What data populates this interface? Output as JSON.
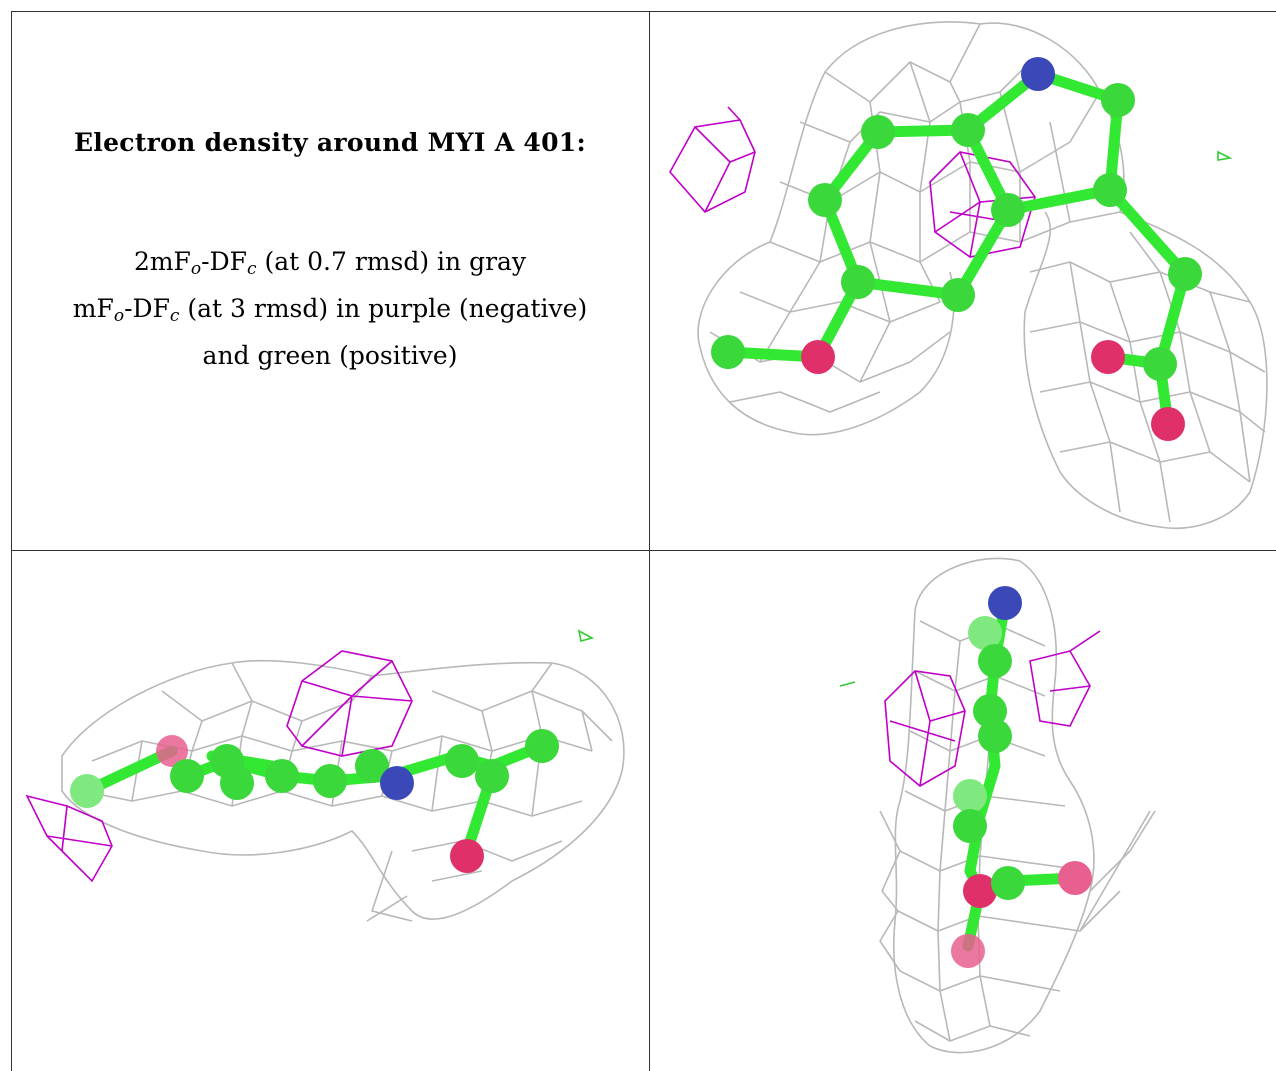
{
  "figure": {
    "title": "Electron density around MYI A 401:",
    "legend": [
      {
        "map": "2mF",
        "sub1": "o",
        "mid": "-DF",
        "sub2": "c",
        "rest": " (at 0.7 rmsd) in gray"
      },
      {
        "map": "mF",
        "sub1": "o",
        "mid": "-DF",
        "sub2": "c",
        "rest": " (at 3 rmsd) in purple (negative)"
      },
      {
        "map": "",
        "sub1": "",
        "mid": "",
        "sub2": "",
        "rest": "and green (positive)"
      }
    ]
  },
  "colors": {
    "mesh_2fofc": "#b4b4b4",
    "mesh_negative": "#c000c8",
    "mesh_positive": "#33cc33",
    "carbon": "#33e833",
    "oxygen": "#e0306a",
    "nitrogen": "#3a48b8"
  },
  "views": [
    {
      "name": "view-top-right",
      "icons": [
        "electron-density-mesh-icon",
        "ligand-ball-and-stick-icon"
      ]
    },
    {
      "name": "view-bottom-left",
      "icons": [
        "electron-density-mesh-icon",
        "ligand-ball-and-stick-icon"
      ]
    },
    {
      "name": "view-bottom-right",
      "icons": [
        "electron-density-mesh-icon",
        "ligand-ball-and-stick-icon"
      ]
    }
  ]
}
